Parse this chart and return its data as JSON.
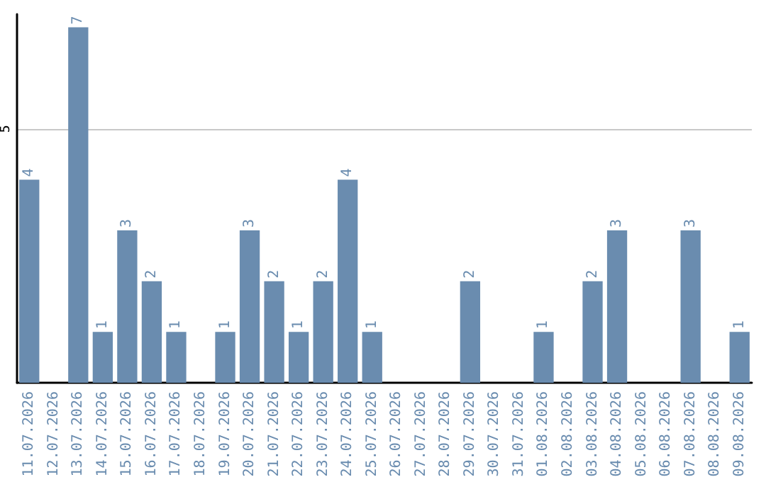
{
  "chart_data": {
    "type": "bar",
    "categories": [
      "11.07.2026",
      "12.07.2026",
      "13.07.2026",
      "14.07.2026",
      "15.07.2026",
      "16.07.2026",
      "17.07.2026",
      "18.07.2026",
      "19.07.2026",
      "20.07.2026",
      "21.07.2026",
      "22.07.2026",
      "23.07.2026",
      "24.07.2026",
      "25.07.2026",
      "26.07.2026",
      "27.07.2026",
      "28.07.2026",
      "29.07.2026",
      "30.07.2026",
      "31.07.2026",
      "01.08.2026",
      "02.08.2026",
      "03.08.2026",
      "04.08.2026",
      "05.08.2026",
      "06.08.2026",
      "07.08.2026",
      "08.08.2026",
      "09.08.2026"
    ],
    "values": [
      4,
      0,
      7,
      1,
      3,
      2,
      1,
      0,
      1,
      3,
      2,
      1,
      2,
      4,
      1,
      0,
      0,
      0,
      2,
      0,
      0,
      1,
      0,
      2,
      3,
      0,
      0,
      3,
      0,
      1
    ],
    "value_labels": [
      "4",
      null,
      "7",
      "1",
      "3",
      "2",
      "1",
      null,
      "1",
      "3",
      "2",
      "1",
      "2",
      "4",
      "1",
      null,
      null,
      null,
      "2",
      null,
      null,
      "1",
      null,
      "2",
      "3",
      null,
      null,
      "3",
      null,
      "1"
    ],
    "color": "#6a8caf",
    "ylim": [
      0,
      7.26
    ],
    "yticks": [
      5
    ],
    "grid": "y"
  }
}
